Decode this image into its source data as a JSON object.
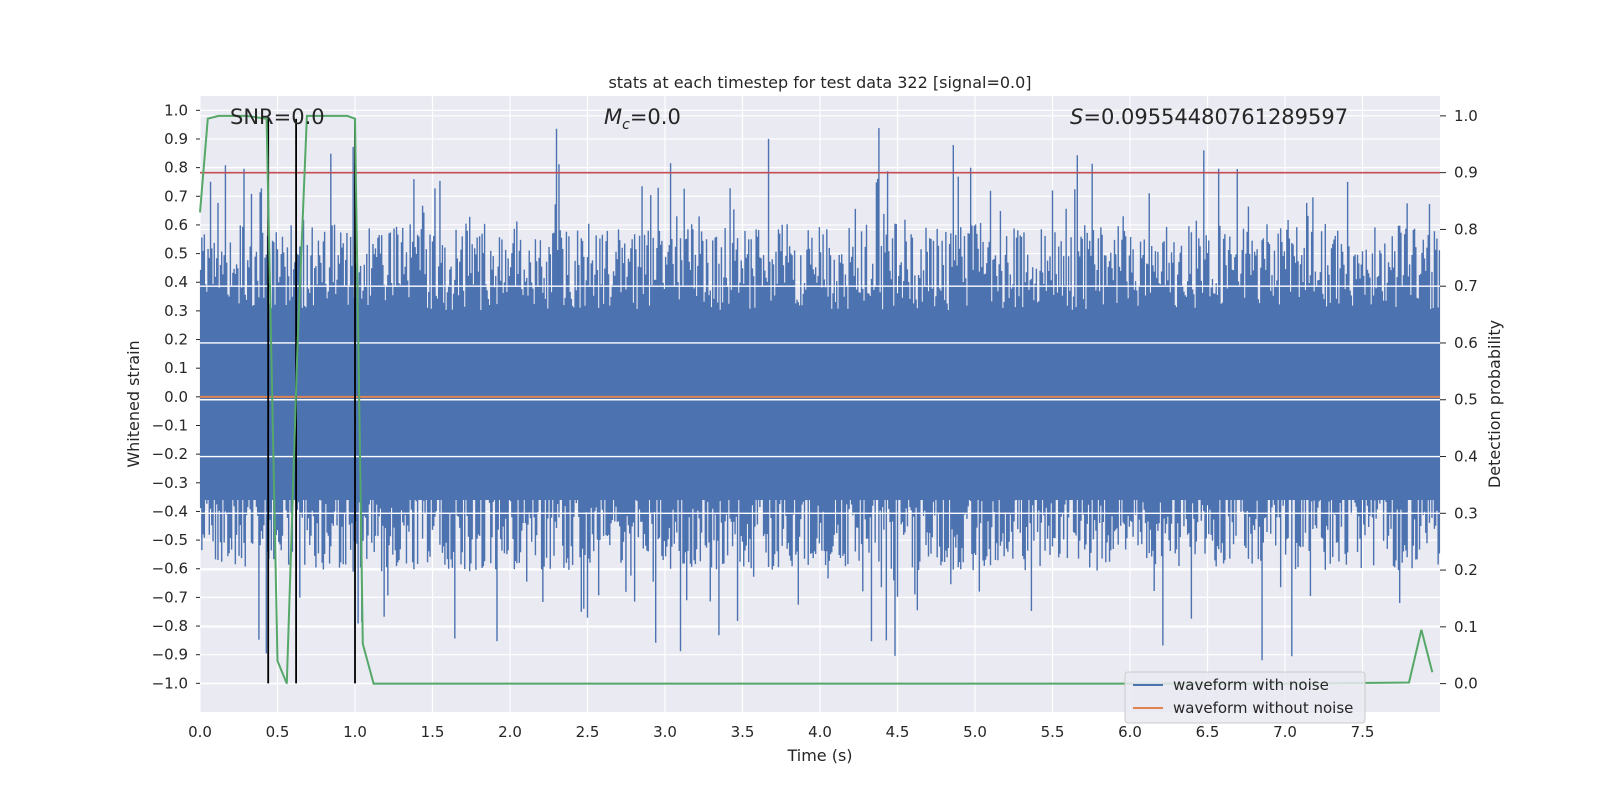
{
  "chart_data": {
    "type": "line",
    "title": "stats at each timestep for test data 322 [signal=0.0]",
    "xlabel": "Time (s)",
    "ylabel_left": "Whitened strain",
    "ylabel_right": "Detection probability",
    "xlim": [
      0.0,
      8.0
    ],
    "ylim_left": [
      -1.1,
      1.05
    ],
    "ylim_right": [
      -0.05,
      1.035
    ],
    "x_ticks": [
      "0.0",
      "0.5",
      "1.0",
      "1.5",
      "2.0",
      "2.5",
      "3.0",
      "3.5",
      "4.0",
      "4.5",
      "5.0",
      "5.5",
      "6.0",
      "6.5",
      "7.0",
      "7.5"
    ],
    "y_left_ticks": [
      "1.0",
      "0.9",
      "0.8",
      "0.7",
      "0.6",
      "0.5",
      "0.4",
      "0.3",
      "0.2",
      "0.1",
      "0.0",
      "−0.1",
      "−0.2",
      "−0.3",
      "−0.4",
      "−0.5",
      "−0.6",
      "−0.7",
      "−0.8",
      "−0.9",
      "−1.0"
    ],
    "y_right_ticks": [
      "1.0",
      "0.9",
      "0.8",
      "0.7",
      "0.6",
      "0.5",
      "0.4",
      "0.3",
      "0.2",
      "0.1",
      "0.0"
    ],
    "grid": true,
    "annotations": {
      "snr": "SNR=0.0",
      "mc_symbol": "M",
      "mc_sub": "c",
      "mc_value": "=0.0",
      "s_symbol": "S",
      "s_value": "=0.09554480761289597"
    },
    "series": [
      {
        "name": "waveform with noise",
        "axis": "left",
        "color": "#4c72b0",
        "description": "dense noisy strain, envelope approx",
        "envelope_upper_typical": 0.55,
        "envelope_lower_typical": -0.55,
        "peak_max": 0.96,
        "peak_min": -0.97
      },
      {
        "name": "waveform without noise",
        "axis": "left",
        "color": "#dd8452",
        "x": [
          0.0,
          8.0
        ],
        "y": [
          0.0,
          0.0
        ]
      },
      {
        "name": "detection probability",
        "axis": "right",
        "color": "#55a868",
        "x": [
          0.0,
          0.05,
          0.12,
          0.3,
          0.43,
          0.5,
          0.56,
          0.63,
          0.69,
          0.8,
          0.95,
          1.0,
          1.05,
          1.12,
          1.5,
          3.0,
          5.0,
          7.0,
          7.8,
          7.88,
          7.95
        ],
        "y": [
          0.83,
          0.995,
          1.0,
          1.0,
          0.995,
          0.04,
          0.0,
          0.6,
          1.0,
          1.0,
          1.0,
          0.995,
          0.07,
          0.0,
          0.0,
          0.0,
          0.0,
          0.0,
          0.002,
          0.095,
          0.02
        ]
      },
      {
        "name": "threshold",
        "axis": "right",
        "color": "#c44e52",
        "x": [
          0.0,
          8.0
        ],
        "y": [
          0.9,
          0.9
        ]
      }
    ],
    "vertical_markers": {
      "color": "#000000",
      "x": [
        0.44,
        0.62,
        1.0
      ],
      "y_top_left": 0.97,
      "y_bottom_left": -1.0
    },
    "legend": {
      "placement": "lower-right",
      "entries": [
        "waveform with noise",
        "waveform without noise"
      ]
    },
    "colors": {
      "plot_background": "#eaeaf2",
      "grid": "#ffffff",
      "noise": "#4c72b0",
      "clean": "#dd8452",
      "probability": "#55a868",
      "threshold": "#c44e52",
      "marker": "#000000"
    }
  }
}
